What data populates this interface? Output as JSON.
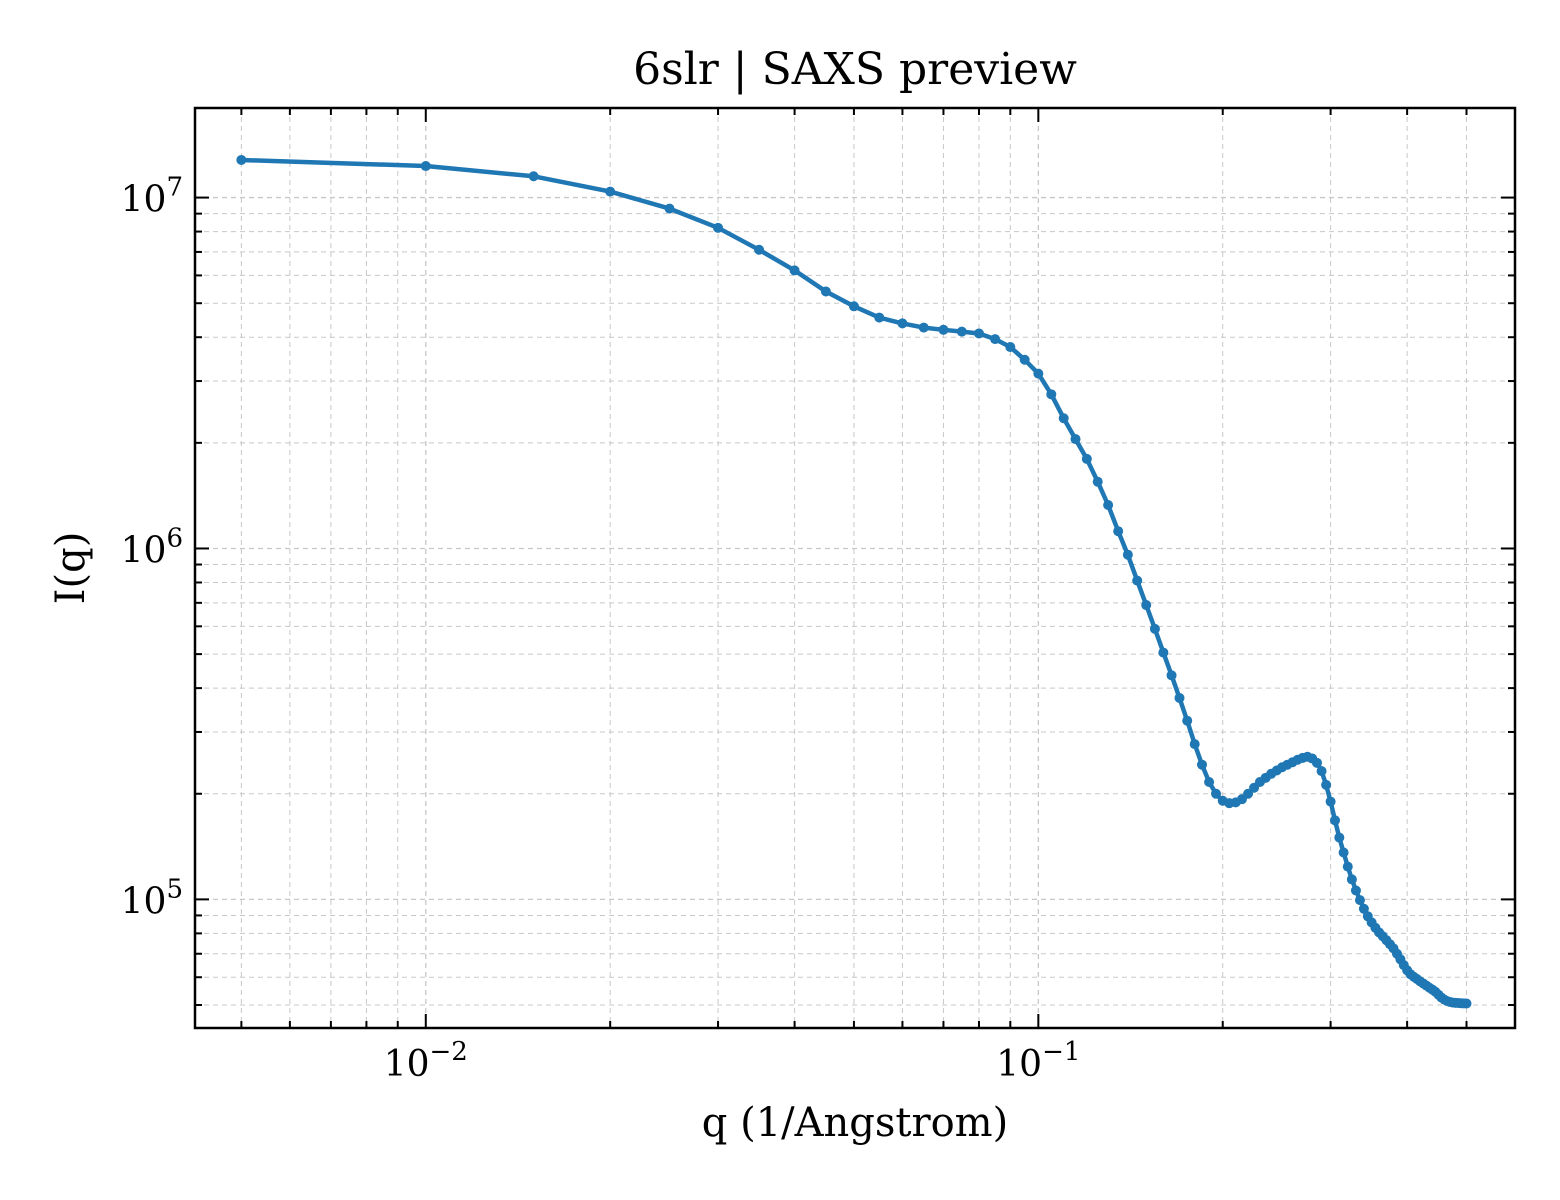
{
  "chart_data": {
    "type": "line",
    "title": "6slr | SAXS preview",
    "xlabel": "q (1/Angstrom)",
    "ylabel": "I(q)",
    "xscale": "log",
    "yscale": "log",
    "xlim": [
      0.0042,
      0.6
    ],
    "ylim": [
      43000,
      18000000
    ],
    "xticks": [
      {
        "value": 0.01,
        "base": "10",
        "exp": "−2"
      },
      {
        "value": 0.1,
        "base": "10",
        "exp": "−1"
      }
    ],
    "yticks": [
      {
        "value": 100000,
        "base": "10",
        "exp": "5"
      },
      {
        "value": 1000000,
        "base": "10",
        "exp": "6"
      },
      {
        "value": 10000000,
        "base": "10",
        "exp": "7"
      }
    ],
    "grid": true,
    "color": "#1f77b4",
    "series": [
      {
        "x": [
          0.005,
          0.01,
          0.015,
          0.02,
          0.025,
          0.03,
          0.035,
          0.04,
          0.045,
          0.05,
          0.055,
          0.06,
          0.065,
          0.07,
          0.075,
          0.08,
          0.085,
          0.09,
          0.095,
          0.1,
          0.105,
          0.11,
          0.115,
          0.12,
          0.125,
          0.13,
          0.135,
          0.14,
          0.145,
          0.15,
          0.155,
          0.16,
          0.165,
          0.17,
          0.175,
          0.18,
          0.185,
          0.19,
          0.195,
          0.2,
          0.205,
          0.21,
          0.215,
          0.22,
          0.225,
          0.23,
          0.235,
          0.24,
          0.245,
          0.25,
          0.255,
          0.26,
          0.265,
          0.27,
          0.275,
          0.28,
          0.285,
          0.29,
          0.295,
          0.3,
          0.305,
          0.31,
          0.315,
          0.32,
          0.325,
          0.33,
          0.335,
          0.34,
          0.345,
          0.35,
          0.355,
          0.36,
          0.365,
          0.37,
          0.375,
          0.38,
          0.385,
          0.39,
          0.395,
          0.4,
          0.405,
          0.41,
          0.415,
          0.42,
          0.425,
          0.43,
          0.435,
          0.44,
          0.445,
          0.45,
          0.455,
          0.46,
          0.465,
          0.47,
          0.475,
          0.48,
          0.485,
          0.49,
          0.495,
          0.5
        ],
        "y": [
          12800000,
          12300000,
          11500000,
          10400000,
          9300000,
          8200000,
          7100000,
          6200000,
          5400000,
          4900000,
          4550000,
          4380000,
          4260000,
          4200000,
          4150000,
          4100000,
          3950000,
          3750000,
          3450000,
          3150000,
          2750000,
          2350000,
          2050000,
          1800000,
          1550000,
          1330000,
          1120000,
          960000,
          810000,
          690000,
          590000,
          505000,
          435000,
          375000,
          323000,
          277000,
          242000,
          216000,
          200000,
          191000,
          188000,
          189000,
          193000,
          200000,
          208000,
          216000,
          222000,
          228000,
          233000,
          238000,
          242000,
          246000,
          250000,
          253000,
          255000,
          252000,
          245000,
          232000,
          212000,
          190000,
          168000,
          150000,
          136000,
          124000,
          114000,
          106000,
          99500,
          94000,
          89500,
          86000,
          83000,
          80500,
          78500,
          76500,
          74500,
          72500,
          70000,
          67500,
          65000,
          62800,
          61200,
          60200,
          59300,
          58400,
          57600,
          56800,
          56000,
          55300,
          54500,
          53500,
          52500,
          51800,
          51300,
          51000,
          50800,
          50700,
          50650,
          50600,
          50550,
          50500
        ]
      }
    ]
  }
}
